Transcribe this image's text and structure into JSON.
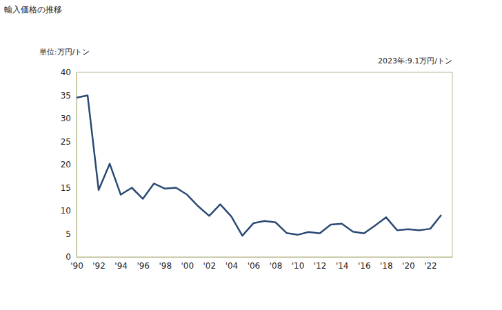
{
  "chart_data": {
    "type": "line",
    "title": "輸入価格の推移",
    "ylabel": "単位:万円/トン",
    "annotation": "2023年:9.1万円/トン",
    "x": [
      1990,
      1991,
      1992,
      1993,
      1994,
      1995,
      1996,
      1997,
      1998,
      1999,
      2000,
      2001,
      2002,
      2003,
      2004,
      2005,
      2006,
      2007,
      2008,
      2009,
      2010,
      2011,
      2012,
      2013,
      2014,
      2015,
      2016,
      2017,
      2018,
      2019,
      2020,
      2021,
      2022,
      2023
    ],
    "values": [
      34.5,
      35,
      14.5,
      20.2,
      13.5,
      15,
      12.6,
      15.9,
      14.8,
      15,
      13.5,
      11,
      8.9,
      11.4,
      8.8,
      4.6,
      7.3,
      7.8,
      7.5,
      5.2,
      4.8,
      5.4,
      5.1,
      7,
      7.2,
      5.5,
      5.1,
      6.8,
      8.6,
      5.8,
      6,
      5.8,
      6.1,
      9.1
    ],
    "color": "#2b4a74",
    "xlim": [
      1990,
      2024
    ],
    "xticks": [
      {
        "value": 1990,
        "label": "'90"
      },
      {
        "value": 1992,
        "label": "'92"
      },
      {
        "value": 1994,
        "label": "'94"
      },
      {
        "value": 1996,
        "label": "'96"
      },
      {
        "value": 1998,
        "label": "'98"
      },
      {
        "value": 2000,
        "label": "'00"
      },
      {
        "value": 2002,
        "label": "'02"
      },
      {
        "value": 2004,
        "label": "'04"
      },
      {
        "value": 2006,
        "label": "'06"
      },
      {
        "value": 2008,
        "label": "'08"
      },
      {
        "value": 2010,
        "label": "'10"
      },
      {
        "value": 2012,
        "label": "'12"
      },
      {
        "value": 2014,
        "label": "'14"
      },
      {
        "value": 2016,
        "label": "'16"
      },
      {
        "value": 2018,
        "label": "'18"
      },
      {
        "value": 2020,
        "label": "'20"
      },
      {
        "value": 2022,
        "label": "'22"
      }
    ],
    "ylim": [
      0,
      40
    ],
    "yticks": [
      0,
      5,
      10,
      15,
      20,
      25,
      30,
      35,
      40
    ],
    "grid": false
  }
}
